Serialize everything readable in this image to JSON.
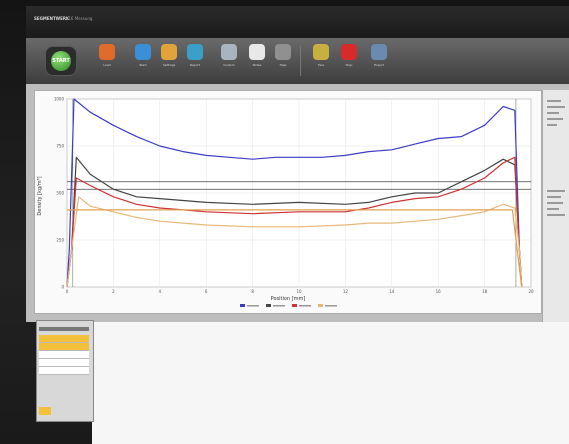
{
  "app": {
    "title": "SEGMENTWERK",
    "subtitle": "v16 Messung"
  },
  "toolbar": {
    "start_label": "START",
    "buttons": [
      {
        "name": "open-button",
        "icon": "folder-icon",
        "label": "Load",
        "color": "#e06b2b"
      },
      {
        "name": "monitor-button",
        "icon": "monitor-icon",
        "label": "Start",
        "color": "#3a8fd8"
      },
      {
        "name": "database-button",
        "icon": "database-icon",
        "label": "Settings",
        "color": "#e0a43a"
      },
      {
        "name": "report-button",
        "icon": "pie-icon",
        "label": "Report",
        "color": "#3aa0c8"
      },
      {
        "name": "tools-button",
        "icon": "tools-icon",
        "label": "Custom",
        "color": "#a8b4c0"
      },
      {
        "name": "notes-button",
        "icon": "notes-icon",
        "label": "Notes",
        "color": "#e8e8e8"
      },
      {
        "name": "help-button",
        "icon": "help-icon",
        "label": "Help",
        "color": "#909090"
      },
      {
        "name": "tare-button",
        "icon": "star-icon",
        "label": "Tare",
        "color": "#c8b040"
      },
      {
        "name": "stop-button",
        "icon": "stop-icon",
        "label": "Stop",
        "color": "#d82a2a"
      },
      {
        "name": "export-button",
        "icon": "export-icon",
        "label": "Export",
        "color": "#6a8ab0"
      }
    ]
  },
  "chart_data": {
    "type": "line",
    "title": "",
    "xlabel": "Position [mm]",
    "ylabel": "Density [kg/m³]",
    "xlim": [
      0,
      20
    ],
    "ylim": [
      0,
      1000
    ],
    "x_ticks": [
      0,
      2,
      4,
      6,
      8,
      10,
      12,
      14,
      16,
      18,
      20
    ],
    "y_ticks": [
      0,
      250,
      500,
      750,
      1000
    ],
    "grid": true,
    "legend_position": "bottom",
    "reference_lines": [
      {
        "y": 560,
        "color": "#444444"
      },
      {
        "y": 520,
        "color": "#444444"
      }
    ],
    "series": [
      {
        "color": "#3b3bc8",
        "x": [
          0,
          0.1,
          0.3,
          1,
          2,
          3,
          4,
          5,
          6,
          7,
          8,
          9,
          10,
          11,
          12,
          13,
          14,
          15,
          16,
          17,
          18,
          18.8,
          19.3,
          19.5,
          19.6
        ],
        "y": [
          0,
          200,
          1000,
          930,
          860,
          800,
          750,
          720,
          700,
          690,
          680,
          690,
          690,
          690,
          700,
          720,
          730,
          760,
          790,
          800,
          860,
          960,
          940,
          200,
          0
        ]
      },
      {
        "color": "#444444",
        "x": [
          0,
          0.2,
          0.4,
          1,
          2,
          3,
          4,
          5,
          6,
          8,
          10,
          12,
          13,
          14,
          15,
          16,
          17,
          18,
          18.8,
          19.3,
          19.5,
          19.6
        ],
        "y": [
          0,
          200,
          690,
          600,
          520,
          480,
          470,
          460,
          450,
          440,
          450,
          440,
          450,
          480,
          500,
          500,
          560,
          620,
          680,
          650,
          200,
          0
        ]
      },
      {
        "color": "#cc3333",
        "x": [
          0,
          0.2,
          0.4,
          1,
          2,
          3,
          4,
          5,
          6,
          8,
          10,
          12,
          13,
          14,
          15,
          16,
          17,
          18,
          18.8,
          19.3,
          19.5,
          19.6
        ],
        "y": [
          0,
          200,
          580,
          540,
          480,
          440,
          420,
          410,
          400,
          390,
          400,
          400,
          420,
          450,
          470,
          480,
          520,
          580,
          660,
          690,
          200,
          0
        ]
      },
      {
        "color": "#e8b87a",
        "x": [
          0,
          0.2,
          0.5,
          1,
          2,
          3,
          4,
          5,
          6,
          8,
          10,
          12,
          13,
          14,
          15,
          16,
          17,
          18,
          18.8,
          19.3,
          19.5,
          19.6
        ],
        "y": [
          0,
          200,
          480,
          430,
          400,
          370,
          350,
          340,
          330,
          320,
          320,
          330,
          340,
          340,
          350,
          360,
          380,
          400,
          440,
          420,
          200,
          0
        ]
      },
      {
        "color": "#e0a050",
        "x": [
          0,
          0.5,
          5,
          10,
          15,
          19.2,
          19.6
        ],
        "y": [
          410,
          410,
          410,
          410,
          410,
          410,
          0
        ]
      }
    ]
  }
}
